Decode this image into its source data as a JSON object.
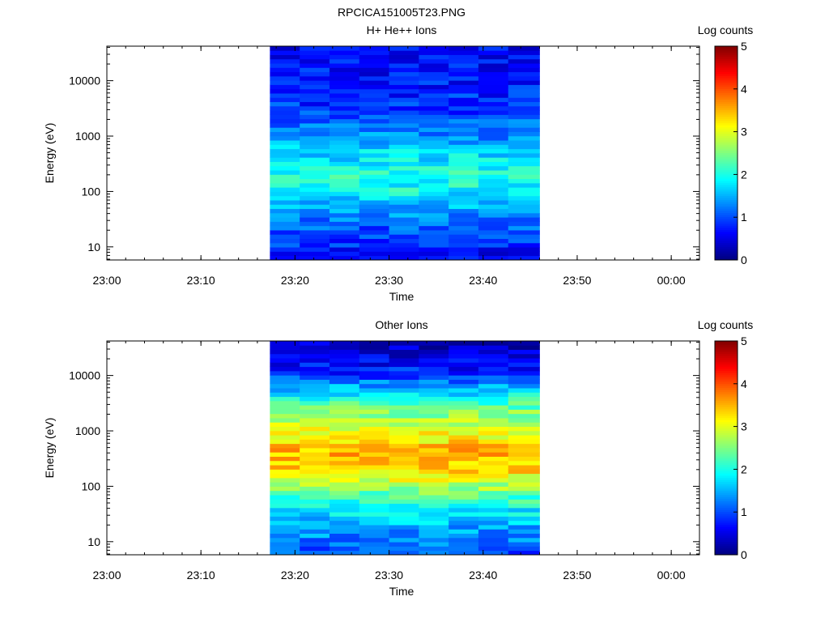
{
  "figure": {
    "title": "RPCICA151005T23.PNG"
  },
  "chart_data": [
    {
      "type": "heatmap",
      "title": "H+ He++ Ions",
      "xlabel": "Time",
      "ylabel": "Energy (eV)",
      "x_ticks": [
        "23:00",
        "23:10",
        "23:20",
        "23:30",
        "23:40",
        "23:50",
        "00:00"
      ],
      "x_range": [
        "23:00",
        "00:03"
      ],
      "y_scale": "log",
      "y_ticks": [
        10,
        100,
        1000,
        10000
      ],
      "y_ticks_labels": [
        "10",
        "100",
        "1000",
        "10000"
      ],
      "y_range": [
        5.8,
        42000
      ],
      "data_time_range": [
        "23:17:20",
        "23:46:00"
      ],
      "time_bins": [
        "23:17:20",
        "23:20:30",
        "23:23:40",
        "23:26:50",
        "23:30:00",
        "23:33:10",
        "23:36:20",
        "23:39:30",
        "23:42:40"
      ],
      "energy_range_eV": [
        5.8,
        42000
      ],
      "energy_bins": 50,
      "profile_energies_eV": [
        6,
        10,
        20,
        50,
        100,
        200,
        500,
        1000,
        3000,
        10000,
        42000
      ],
      "profile_log_counts": [
        0.5,
        0.8,
        1.0,
        1.5,
        1.9,
        2.0,
        1.7,
        1.3,
        0.9,
        0.7,
        0.6
      ],
      "colorbar": {
        "label": "Log counts",
        "range": [
          0,
          5
        ],
        "ticks": [
          "0",
          "1",
          "2",
          "3",
          "4",
          "5"
        ]
      }
    },
    {
      "type": "heatmap",
      "title": "Other Ions",
      "xlabel": "Time",
      "ylabel": "Energy (eV)",
      "x_ticks": [
        "23:00",
        "23:10",
        "23:20",
        "23:30",
        "23:40",
        "23:50",
        "00:00"
      ],
      "x_range": [
        "23:00",
        "00:03"
      ],
      "y_scale": "log",
      "y_ticks": [
        10,
        100,
        1000,
        10000
      ],
      "y_ticks_labels": [
        "10",
        "100",
        "1000",
        "10000"
      ],
      "y_range": [
        5.8,
        42000
      ],
      "data_time_range": [
        "23:17:20",
        "23:46:00"
      ],
      "time_bins": [
        "23:17:20",
        "23:20:30",
        "23:23:40",
        "23:26:50",
        "23:30:00",
        "23:33:10",
        "23:36:20",
        "23:39:30",
        "23:42:40"
      ],
      "energy_range_eV": [
        5.8,
        42000
      ],
      "energy_bins": 50,
      "profile_energies_eV": [
        6,
        10,
        20,
        50,
        100,
        200,
        300,
        500,
        1000,
        3000,
        6000,
        10000,
        20000,
        42000
      ],
      "profile_log_counts": [
        1.0,
        1.2,
        1.5,
        2.0,
        2.7,
        3.3,
        3.5,
        3.4,
        3.0,
        2.3,
        1.5,
        0.9,
        0.5,
        0.3
      ],
      "colorbar": {
        "label": "Log counts",
        "range": [
          0,
          5
        ],
        "ticks": [
          "0",
          "1",
          "2",
          "3",
          "4",
          "5"
        ]
      }
    }
  ]
}
